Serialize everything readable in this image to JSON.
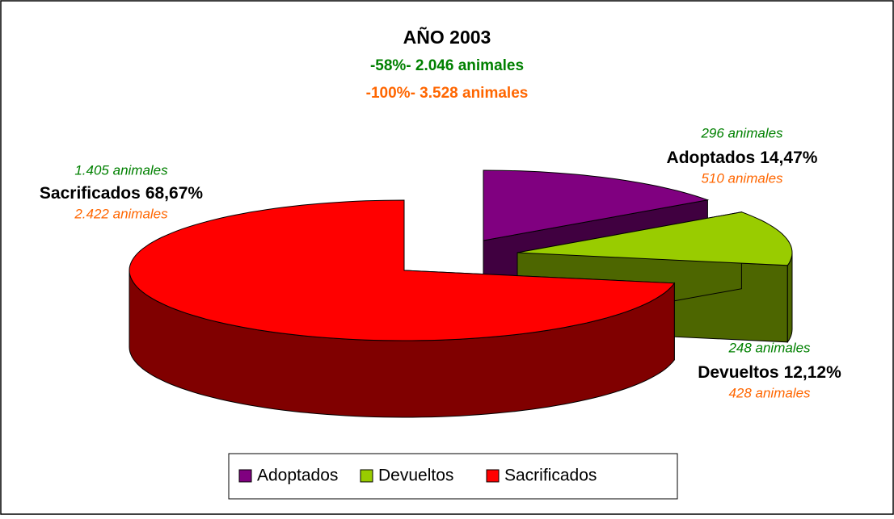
{
  "chart_data": {
    "type": "pie",
    "title": "AÑO 2003",
    "subtitles": [
      {
        "text": "-58%- 2.046 animales",
        "color": "#008000"
      },
      {
        "text": "-100%- 3.528 animales",
        "color": "#ff6600"
      }
    ],
    "categories": [
      "Adoptados",
      "Devueltos",
      "Sacrificados"
    ],
    "values": [
      14.47,
      12.12,
      68.67
    ],
    "value_labels": [
      "14,47%",
      "12,12%",
      "68,67%"
    ],
    "colors": [
      "#800080",
      "#99cc00",
      "#ff0000"
    ],
    "side_colors": [
      "#400040",
      "#4d6600",
      "#800000"
    ],
    "slice_notes": [
      [
        "296 animales",
        "510 animales"
      ],
      [
        "248 animales",
        "428 animales"
      ],
      [
        "1.405 animales",
        "2.422 animales"
      ]
    ],
    "legend": "bottom"
  }
}
